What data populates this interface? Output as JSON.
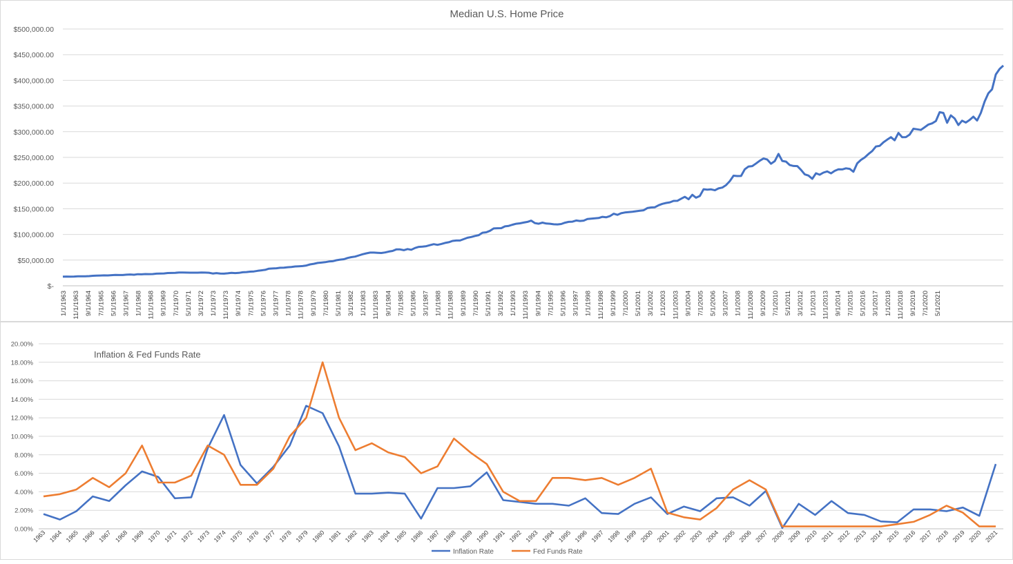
{
  "chart_data": [
    {
      "type": "line",
      "title": "Median U.S. Home Price",
      "xlabel": "",
      "ylabel": "",
      "ylim": [
        0,
        500000
      ],
      "y_ticks": [
        "$500,000.00",
        "$450,000.00",
        "$400,000.00",
        "$350,000.00",
        "$300,000.00",
        "$250,000.00",
        "$200,000.00",
        "$150,000.00",
        "$100,000.00",
        "$50,000.00",
        "$-"
      ],
      "x_tick_labels": [
        "1/1/1963",
        "11/1/1963",
        "9/1/1964",
        "7/1/1965",
        "5/1/1966",
        "3/1/1967",
        "1/1/1968",
        "11/1/1968",
        "9/1/1969",
        "7/1/1970",
        "5/1/1971",
        "3/1/1972",
        "1/1/1973",
        "11/1/1973",
        "9/1/1974",
        "7/1/1975",
        "5/1/1976",
        "3/1/1977",
        "1/1/1978",
        "11/1/1978",
        "9/1/1979",
        "7/1/1980",
        "5/1/1981",
        "3/1/1982",
        "1/1/1983",
        "11/1/1983",
        "9/1/1984",
        "7/1/1985",
        "5/1/1986",
        "3/1/1987",
        "1/1/1988",
        "11/1/1988",
        "9/1/1989",
        "7/1/1990",
        "5/1/1991",
        "3/1/1992",
        "1/1/1993",
        "11/1/1993",
        "9/1/1994",
        "7/1/1995",
        "5/1/1996",
        "3/1/1997",
        "1/1/1998",
        "11/1/1998",
        "9/1/1999",
        "7/1/2000",
        "5/1/2001",
        "3/1/2002",
        "1/1/2003",
        "11/1/2003",
        "9/1/2004",
        "7/1/2005",
        "5/1/2006",
        "3/1/2007",
        "1/1/2008",
        "11/1/2008",
        "9/1/2009",
        "7/1/2010",
        "5/1/2011",
        "3/1/2012",
        "1/1/2013",
        "11/1/2013",
        "9/1/2014",
        "7/1/2015",
        "5/1/2016",
        "3/1/2017",
        "1/1/2018",
        "11/1/2018",
        "9/1/2019",
        "7/1/2020",
        "5/1/2021"
      ],
      "grid": true,
      "series": [
        {
          "name": "Median U.S. Home Price",
          "color": "#4472c4",
          "x_start": "1963-Q1",
          "frequency": "quarterly",
          "values": [
            17800,
            18000,
            17900,
            18000,
            18500,
            18500,
            18600,
            18800,
            19500,
            19700,
            20000,
            20300,
            20200,
            20700,
            21200,
            21000,
            21000,
            21600,
            22000,
            21500,
            22600,
            22300,
            22900,
            22700,
            22900,
            23600,
            23800,
            24100,
            24800,
            25000,
            25300,
            26000,
            25900,
            25700,
            25600,
            25500,
            25500,
            25800,
            25700,
            25400,
            23900,
            24700,
            23900,
            23600,
            24300,
            25300,
            24700,
            25200,
            26300,
            26800,
            27500,
            28000,
            29200,
            30100,
            31000,
            33300,
            33800,
            34200,
            35100,
            35300,
            36200,
            36700,
            37600,
            38100,
            38400,
            39500,
            41600,
            42900,
            44500,
            45200,
            46000,
            47300,
            47800,
            49700,
            50900,
            51700,
            54200,
            55800,
            56900,
            59100,
            61400,
            63200,
            64600,
            64700,
            64300,
            63800,
            64900,
            66700,
            67900,
            70900,
            70900,
            69400,
            71500,
            70200,
            73600,
            75800,
            76200,
            77200,
            79200,
            81000,
            79700,
            81500,
            83500,
            84800,
            87300,
            88200,
            88200,
            90800,
            93500,
            95000,
            97100,
            98600,
            103300,
            104100,
            107100,
            111700,
            112100,
            112200,
            115700,
            116700,
            119000,
            120900,
            121700,
            123100,
            124500,
            126900,
            122100,
            120900,
            123000,
            121200,
            120900,
            119700,
            119500,
            120300,
            122800,
            124500,
            124800,
            127200,
            126200,
            126900,
            130000,
            130800,
            131300,
            132000,
            134300,
            133300,
            135600,
            140300,
            138200,
            141300,
            142800,
            143600,
            144200,
            145200,
            146100,
            147000,
            151300,
            152500,
            152900,
            156800,
            159500,
            161300,
            162500,
            165300,
            165500,
            169500,
            173300,
            168600,
            177200,
            171500,
            174800,
            188000,
            187100,
            187800,
            186000,
            189700,
            191300,
            196100,
            203800,
            214400,
            213700,
            213800,
            226900,
            232200,
            233000,
            238200,
            243600,
            247800,
            245800,
            237700,
            242700,
            256900,
            243200,
            241800,
            235100,
            233400,
            233100,
            225700,
            217000,
            214600,
            208400,
            219100,
            216300,
            220400,
            222700,
            219000,
            223800,
            226900,
            226600,
            228700,
            227700,
            222100,
            238400,
            245200,
            249800,
            256600,
            262300,
            271300,
            272400,
            279500,
            284500,
            289400,
            283400,
            297600,
            289400,
            289500,
            294400,
            305800,
            304700,
            303500,
            308600,
            314000,
            316300,
            320700,
            338100,
            336500,
            317500,
            331800,
            325800,
            313000,
            321500,
            317900,
            322800,
            329300,
            321800,
            336500,
            358700,
            374800,
            382600,
            411400,
            422200,
            428700
          ]
        }
      ]
    },
    {
      "type": "line",
      "title": "Inflation & Fed Funds Rate",
      "xlabel": "",
      "ylabel": "",
      "ylim": [
        0,
        20
      ],
      "y_ticks": [
        "20.00%",
        "18.00%",
        "16.00%",
        "14.00%",
        "12.00%",
        "10.00%",
        "8.00%",
        "6.00%",
        "4.00%",
        "2.00%",
        "0.00%"
      ],
      "categories": [
        "1963",
        "1964",
        "1965",
        "1966",
        "1967",
        "1968",
        "1969",
        "1970",
        "1971",
        "1972",
        "1973",
        "1974",
        "1975",
        "1976",
        "1977",
        "1978",
        "1979",
        "1980",
        "1981",
        "1982",
        "1983",
        "1984",
        "1985",
        "1986",
        "1987",
        "1988",
        "1989",
        "1990",
        "1991",
        "1992",
        "1993",
        "1994",
        "1995",
        "1996",
        "1997",
        "1998",
        "1999",
        "2000",
        "2001",
        "2002",
        "2003",
        "2004",
        "2005",
        "2006",
        "2007",
        "2008",
        "2009",
        "2010",
        "2011",
        "2012",
        "2013",
        "2014",
        "2015",
        "2016",
        "2017",
        "2018",
        "2019",
        "2020",
        "2021"
      ],
      "grid": true,
      "legend": "bottom",
      "series": [
        {
          "name": "Inflation Rate",
          "color": "#4472c4",
          "values": [
            1.6,
            1.0,
            1.9,
            3.5,
            3.0,
            4.7,
            6.2,
            5.6,
            3.3,
            3.4,
            8.7,
            12.3,
            6.9,
            4.9,
            6.7,
            9.0,
            13.3,
            12.5,
            8.9,
            3.8,
            3.8,
            3.9,
            3.8,
            1.1,
            4.4,
            4.4,
            4.6,
            6.1,
            3.1,
            2.9,
            2.7,
            2.7,
            2.5,
            3.3,
            1.7,
            1.6,
            2.7,
            3.4,
            1.6,
            2.4,
            1.9,
            3.3,
            3.4,
            2.5,
            4.1,
            0.1,
            2.7,
            1.5,
            3.0,
            1.7,
            1.5,
            0.8,
            0.7,
            2.1,
            2.1,
            1.9,
            2.3,
            1.4,
            7.0
          ]
        },
        {
          "name": "Fed Funds Rate",
          "color": "#ed7d31",
          "values": [
            3.5,
            3.75,
            4.25,
            5.5,
            4.5,
            6.0,
            9.0,
            5.0,
            5.0,
            5.75,
            9.0,
            8.0,
            4.75,
            4.75,
            6.5,
            10.0,
            12.0,
            18.0,
            12.0,
            8.5,
            9.25,
            8.25,
            7.75,
            6.0,
            6.75,
            9.75,
            8.25,
            7.0,
            4.0,
            3.0,
            3.0,
            5.5,
            5.5,
            5.25,
            5.5,
            4.75,
            5.5,
            6.5,
            1.75,
            1.25,
            1.0,
            2.25,
            4.25,
            5.25,
            4.25,
            0.25,
            0.25,
            0.25,
            0.25,
            0.25,
            0.25,
            0.25,
            0.5,
            0.75,
            1.5,
            2.5,
            1.75,
            0.25,
            0.25
          ]
        }
      ]
    }
  ]
}
